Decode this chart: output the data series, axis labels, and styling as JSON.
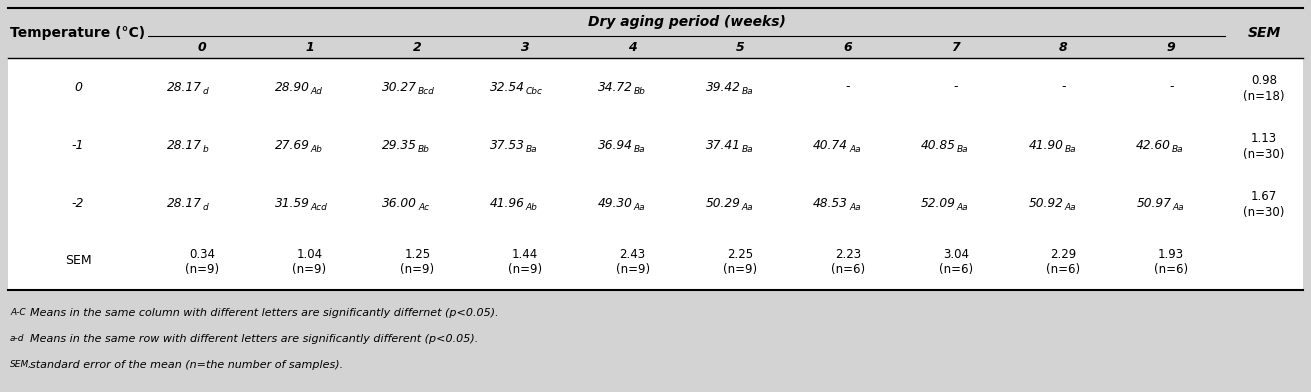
{
  "header_main": "Dry aging period (weeks)",
  "col_header": "Temperature (°C)",
  "sem_header": "SEM",
  "sub_headers": [
    "0",
    "1",
    "2",
    "3",
    "4",
    "5",
    "6",
    "7",
    "8",
    "9"
  ],
  "rows": [
    {
      "temp": "0",
      "values": [
        [
          "28.17",
          "d"
        ],
        [
          "28.90",
          "Ad"
        ],
        [
          "30.27",
          "Bcd"
        ],
        [
          "32.54",
          "Cbc"
        ],
        [
          "34.72",
          "Bb"
        ],
        [
          "39.42",
          "Ba"
        ],
        [
          "-",
          ""
        ],
        [
          "-",
          ""
        ],
        [
          "-",
          ""
        ],
        [
          "-",
          ""
        ]
      ],
      "sem_main": "0.98",
      "sem_sub": "(n=18)"
    },
    {
      "temp": "-1",
      "values": [
        [
          "28.17",
          "b"
        ],
        [
          "27.69",
          "Ab"
        ],
        [
          "29.35",
          "Bb"
        ],
        [
          "37.53",
          "Ba"
        ],
        [
          "36.94",
          "Ba"
        ],
        [
          "37.41",
          "Ba"
        ],
        [
          "40.74",
          "Aa"
        ],
        [
          "40.85",
          "Ba"
        ],
        [
          "41.90",
          "Ba"
        ],
        [
          "42.60",
          "Ba"
        ]
      ],
      "sem_main": "1.13",
      "sem_sub": "(n=30)"
    },
    {
      "temp": "-2",
      "values": [
        [
          "28.17",
          "d"
        ],
        [
          "31.59",
          "Acd"
        ],
        [
          "36.00",
          "Ac"
        ],
        [
          "41.96",
          "Ab"
        ],
        [
          "49.30",
          "Aa"
        ],
        [
          "50.29",
          "Aa"
        ],
        [
          "48.53",
          "Aa"
        ],
        [
          "52.09",
          "Aa"
        ],
        [
          "50.92",
          "Aa"
        ],
        [
          "50.97",
          "Aa"
        ]
      ],
      "sem_main": "1.67",
      "sem_sub": "(n=30)"
    },
    {
      "temp": "SEM",
      "values": [
        [
          "0.34",
          "(n=9)"
        ],
        [
          "1.04",
          "(n=9)"
        ],
        [
          "1.25",
          "(n=9)"
        ],
        [
          "1.44",
          "(n=9)"
        ],
        [
          "2.43",
          "(n=9)"
        ],
        [
          "2.25",
          "(n=9)"
        ],
        [
          "2.23",
          "(n=6)"
        ],
        [
          "3.04",
          "(n=6)"
        ],
        [
          "2.29",
          "(n=6)"
        ],
        [
          "1.93",
          "(n=6)"
        ]
      ],
      "sem_main": "",
      "sem_sub": ""
    }
  ],
  "footnotes": [
    [
      "A-C",
      "Means in the same column with different letters are significantly differnet (p<0.05)."
    ],
    [
      "a-d",
      "Means in the same row with different letters are significantly different (p<0.05)."
    ],
    [
      "SEM,",
      "standard error of the mean (n=the number of samples)."
    ]
  ],
  "bg_header_color": "#d3d3d3",
  "bg_white": "#ffffff",
  "text_color": "#000000",
  "border_color": "#000000"
}
